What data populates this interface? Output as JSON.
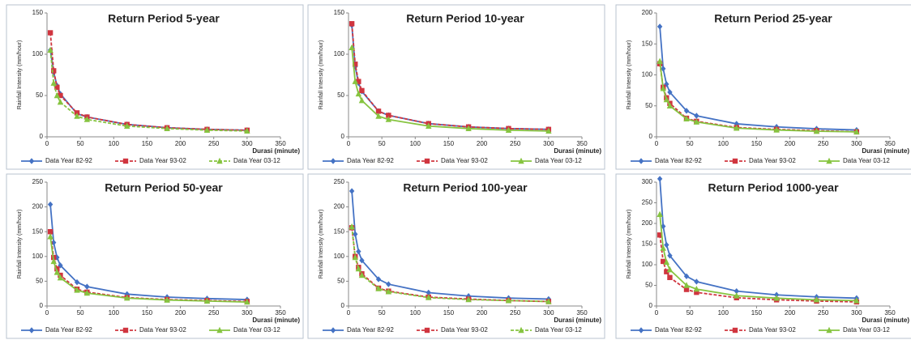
{
  "chart_data": [
    {
      "type": "line",
      "title": "Return Period 5-year",
      "x_label": "Durasi (minute)",
      "y_label": "Rainfall Intensity (mm/hour)",
      "x": [
        5,
        10,
        15,
        20,
        45,
        60,
        120,
        180,
        240,
        300
      ],
      "xlim": [
        0,
        350
      ],
      "xticks": [
        0,
        50,
        100,
        150,
        200,
        250,
        300,
        350
      ],
      "ylim": [
        0,
        150
      ],
      "yticks": [
        0,
        50,
        100,
        150
      ],
      "legend": "bottom",
      "series": [
        {
          "name": "Data Year 82-92",
          "color": "#4472c4",
          "marker": "diamond",
          "dashed": false,
          "values": [
            105,
            78,
            62,
            52,
            28,
            24,
            15,
            11,
            9,
            8
          ]
        },
        {
          "name": "Data Year 93-02",
          "color": "#d0353f",
          "marker": "square",
          "dashed": true,
          "values": [
            126,
            80,
            60,
            50,
            29,
            24,
            15,
            11,
            9,
            8
          ]
        },
        {
          "name": "Data Year 03-12",
          "color": "#86c440",
          "marker": "triangle",
          "dashed": true,
          "values": [
            105,
            65,
            50,
            42,
            25,
            21,
            13,
            10,
            8,
            7
          ]
        }
      ]
    },
    {
      "type": "line",
      "title": "Return Period 10-year",
      "x_label": "Durasi (minute)",
      "y_label": "Rainfall Intensity (mm/hour)",
      "x": [
        5,
        10,
        15,
        20,
        45,
        60,
        120,
        180,
        240,
        300
      ],
      "xlim": [
        0,
        350
      ],
      "xticks": [
        0,
        50,
        100,
        150,
        200,
        250,
        300,
        350
      ],
      "ylim": [
        0,
        150
      ],
      "yticks": [
        0,
        50,
        100,
        150
      ],
      "legend": "bottom",
      "series": [
        {
          "name": "Data Year 82-92",
          "color": "#4472c4",
          "marker": "diamond",
          "dashed": false,
          "values": [
            135,
            85,
            65,
            55,
            31,
            26,
            16,
            12,
            10,
            9
          ]
        },
        {
          "name": "Data Year 93-02",
          "color": "#d0353f",
          "marker": "square",
          "dashed": true,
          "values": [
            137,
            88,
            67,
            56,
            31,
            26,
            16,
            12,
            10,
            9
          ]
        },
        {
          "name": "Data Year 03-12",
          "color": "#86c440",
          "marker": "triangle",
          "dashed": false,
          "values": [
            108,
            67,
            52,
            44,
            25,
            21,
            13,
            10,
            8,
            7
          ]
        }
      ]
    },
    {
      "type": "line",
      "title": "Return Period 25-year",
      "x_label": "Durasi (minute)",
      "y_label": "Rainfall Intensity (mm/hour)",
      "x": [
        5,
        10,
        15,
        20,
        45,
        60,
        120,
        180,
        240,
        300
      ],
      "xlim": [
        0,
        350
      ],
      "xticks": [
        0,
        50,
        100,
        150,
        200,
        250,
        300,
        350
      ],
      "ylim": [
        0,
        200
      ],
      "yticks": [
        0,
        50,
        100,
        150,
        200
      ],
      "legend": "bottom",
      "series": [
        {
          "name": "Data Year 82-92",
          "color": "#4472c4",
          "marker": "diamond",
          "dashed": false,
          "values": [
            178,
            110,
            85,
            72,
            42,
            34,
            21,
            16,
            13,
            11
          ]
        },
        {
          "name": "Data Year 93-02",
          "color": "#d0353f",
          "marker": "square",
          "dashed": true,
          "values": [
            118,
            80,
            63,
            54,
            30,
            25,
            15,
            12,
            10,
            8
          ]
        },
        {
          "name": "Data Year 03-12",
          "color": "#86c440",
          "marker": "triangle",
          "dashed": false,
          "values": [
            122,
            78,
            60,
            50,
            29,
            24,
            14,
            11,
            9,
            8
          ]
        }
      ]
    },
    {
      "type": "line",
      "title": "Return Period 50-year",
      "x_label": "Durasi (minute)",
      "y_label": "Rainfall Intensity (mm/hour)",
      "x": [
        5,
        10,
        15,
        20,
        45,
        60,
        120,
        180,
        240,
        300
      ],
      "xlim": [
        0,
        350
      ],
      "xticks": [
        0,
        50,
        100,
        150,
        200,
        250,
        300,
        350
      ],
      "ylim": [
        0,
        250
      ],
      "yticks": [
        0,
        50,
        100,
        150,
        200,
        250
      ],
      "legend": "bottom",
      "series": [
        {
          "name": "Data Year 82-92",
          "color": "#4472c4",
          "marker": "diamond",
          "dashed": false,
          "values": [
            205,
            128,
            98,
            82,
            48,
            39,
            24,
            18,
            15,
            13
          ]
        },
        {
          "name": "Data Year 93-02",
          "color": "#d0353f",
          "marker": "square",
          "dashed": true,
          "values": [
            150,
            98,
            75,
            62,
            34,
            28,
            17,
            13,
            11,
            9
          ]
        },
        {
          "name": "Data Year 03-12",
          "color": "#86c440",
          "marker": "triangle",
          "dashed": false,
          "values": [
            140,
            90,
            68,
            57,
            32,
            26,
            16,
            12,
            10,
            8
          ]
        }
      ]
    },
    {
      "type": "line",
      "title": "Return Period 100-year",
      "x_label": "Durasi (minute)",
      "y_label": "Rainfall Intensity (mm/hour)",
      "x": [
        5,
        10,
        15,
        20,
        45,
        60,
        120,
        180,
        240,
        300
      ],
      "xlim": [
        0,
        350
      ],
      "xticks": [
        0,
        50,
        100,
        150,
        200,
        250,
        300,
        350
      ],
      "ylim": [
        0,
        250
      ],
      "yticks": [
        0,
        50,
        100,
        150,
        200,
        250
      ],
      "legend": "bottom",
      "series": [
        {
          "name": "Data Year 82-92",
          "color": "#4472c4",
          "marker": "diamond",
          "dashed": false,
          "values": [
            232,
            145,
            110,
            92,
            54,
            44,
            27,
            20,
            16,
            14
          ]
        },
        {
          "name": "Data Year 93-02",
          "color": "#d0353f",
          "marker": "square",
          "dashed": true,
          "values": [
            158,
            100,
            78,
            65,
            36,
            30,
            18,
            14,
            11,
            9
          ]
        },
        {
          "name": "Data Year 03-12",
          "color": "#86c440",
          "marker": "triangle",
          "dashed": true,
          "values": [
            160,
            98,
            75,
            62,
            35,
            29,
            17,
            13,
            11,
            9
          ]
        }
      ]
    },
    {
      "type": "line",
      "title": "Return Period 1000-year",
      "x_label": "Durasi (minute)",
      "y_label": "Rainfall Intensity (mm/hour)",
      "x": [
        5,
        10,
        15,
        20,
        45,
        60,
        120,
        180,
        240,
        300
      ],
      "xlim": [
        0,
        350
      ],
      "xticks": [
        0,
        50,
        100,
        150,
        200,
        250,
        300,
        350
      ],
      "ylim": [
        0,
        300
      ],
      "yticks": [
        0,
        50,
        100,
        150,
        200,
        250,
        300
      ],
      "legend": "bottom",
      "series": [
        {
          "name": "Data Year 82-92",
          "color": "#4472c4",
          "marker": "diamond",
          "dashed": false,
          "values": [
            308,
            193,
            148,
            122,
            72,
            59,
            36,
            27,
            22,
            19
          ]
        },
        {
          "name": "Data Year 93-02",
          "color": "#d0353f",
          "marker": "square",
          "dashed": true,
          "values": [
            172,
            108,
            83,
            69,
            40,
            33,
            20,
            15,
            12,
            10
          ]
        },
        {
          "name": "Data Year 03-12",
          "color": "#86c440",
          "marker": "triangle",
          "dashed": false,
          "values": [
            222,
            140,
            106,
            88,
            50,
            41,
            25,
            19,
            15,
            13
          ]
        }
      ]
    }
  ]
}
